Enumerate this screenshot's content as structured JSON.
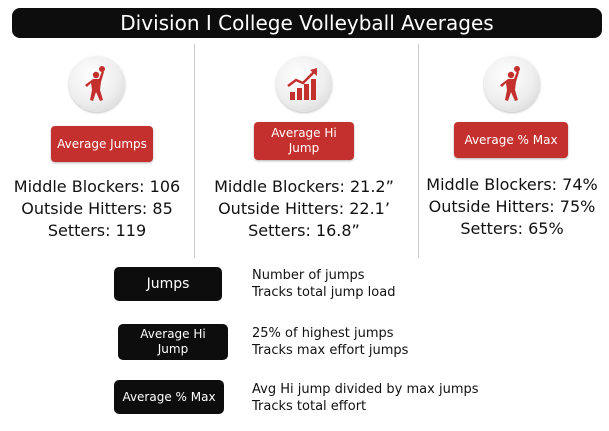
{
  "title": "Division I College Volleyball Averages",
  "colors": {
    "accent_red": "#c4302e",
    "dark": "#0d0d0d"
  },
  "metrics": [
    {
      "icon": "volleyball-player-icon",
      "badge": "Average Jumps",
      "stats": [
        "Middle Blockers: 106",
        "Outside Hitters: 85",
        "Setters: 119"
      ]
    },
    {
      "icon": "rising-bar-chart-icon",
      "badge": "Average Hi Jump",
      "stats": [
        "Middle Blockers: 21.2”",
        "Outside Hitters: 22.1’",
        "Setters: 16.8”"
      ]
    },
    {
      "icon": "volleyball-player-icon",
      "badge": "Average % Max",
      "stats": [
        "Middle Blockers: 74%",
        "Outside Hitters: 75%",
        "Setters: 65%"
      ]
    }
  ],
  "legend": [
    {
      "badge": "Jumps",
      "lines": [
        "Number of jumps",
        "Tracks total jump load"
      ]
    },
    {
      "badge": "Average Hi Jump",
      "lines": [
        "25% of highest jumps",
        "Tracks max effort jumps"
      ]
    },
    {
      "badge": "Average % Max",
      "lines": [
        "Avg Hi jump divided by max jumps",
        "Tracks total effort"
      ]
    }
  ]
}
